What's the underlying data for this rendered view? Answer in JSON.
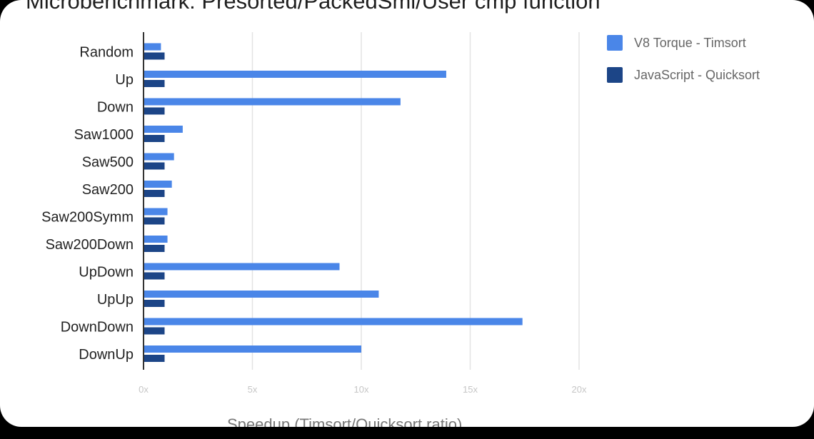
{
  "chart_data": {
    "type": "bar",
    "orientation": "horizontal",
    "title": "Microbenchmark: Presorted/PackedSmi/User cmp function",
    "xlabel": "Speedup (Timsort/Quicksort ratio)",
    "categories": [
      "Random",
      "Up",
      "Down",
      "Saw1000",
      "Saw500",
      "Saw200",
      "Saw200Symm",
      "Saw200Down",
      "UpDown",
      "UpUp",
      "DownDown",
      "DownUp"
    ],
    "series": [
      {
        "name": "V8 Torque - Timsort",
        "color": "#4a86e8",
        "values": [
          0.8,
          13.9,
          11.8,
          1.8,
          1.4,
          1.3,
          1.1,
          1.1,
          9.0,
          10.8,
          17.4,
          10.0
        ]
      },
      {
        "name": "JavaScript - Quicksort",
        "color": "#1c4587",
        "values": [
          1,
          1,
          1,
          1,
          1,
          1,
          1,
          1,
          1,
          1,
          1,
          1
        ]
      }
    ],
    "xticks": [
      "0x",
      "5x",
      "10x",
      "15x",
      "20x"
    ],
    "xlim": [
      0,
      20
    ],
    "grid": true,
    "legend_position": "right"
  }
}
